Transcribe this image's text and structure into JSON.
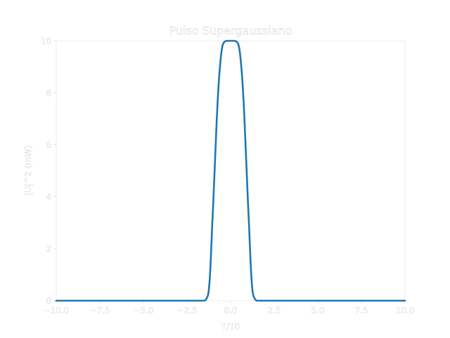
{
  "chart_data": {
    "type": "line",
    "title": "Pulso Supergaussiano",
    "xlabel": "T/T0",
    "ylabel": "|U|^2 (mW)",
    "xlim": [
      -10.0,
      10.0
    ],
    "ylim": [
      0,
      10
    ],
    "xticks": [
      "−10.0",
      "−7.5",
      "−5.0",
      "−2.5",
      "0.0",
      "2.5",
      "5.0",
      "7.5",
      "10.0"
    ],
    "xtick_values": [
      -10.0,
      -7.5,
      -5.0,
      -2.5,
      0.0,
      2.5,
      5.0,
      7.5,
      10.0
    ],
    "yticks": [
      "0",
      "2",
      "4",
      "6",
      "8",
      "10"
    ],
    "ytick_values": [
      0,
      2,
      4,
      6,
      8,
      10
    ],
    "grid": false,
    "series": [
      {
        "color": "#1f77b4",
        "x": [
          -10.0,
          -2.0,
          -1.5,
          -1.4,
          -1.3,
          -1.25,
          -1.2,
          -1.15,
          -1.1,
          -1.05,
          -1.0,
          -0.95,
          -0.9,
          -0.85,
          -0.8,
          -0.75,
          -0.7,
          -0.65,
          -0.6,
          -0.55,
          -0.5,
          -0.45,
          -0.4,
          -0.3,
          -0.2,
          -0.1,
          0.0,
          0.1,
          0.2,
          0.3,
          0.4,
          0.45,
          0.5,
          0.55,
          0.6,
          0.65,
          0.7,
          0.75,
          0.8,
          0.85,
          0.9,
          0.95,
          1.0,
          1.05,
          1.1,
          1.15,
          1.2,
          1.25,
          1.3,
          1.4,
          1.5,
          2.0,
          10.0
        ],
        "y": [
          0.0,
          0.0,
          0.0,
          0.05,
          0.2,
          0.4,
          0.8,
          1.4,
          2.2,
          3.0,
          3.7,
          4.5,
          5.3,
          6.1,
          6.9,
          7.6,
          8.2,
          8.7,
          9.1,
          9.45,
          9.7,
          9.85,
          9.93,
          9.99,
          10.0,
          10.0,
          10.0,
          10.0,
          10.0,
          9.99,
          9.93,
          9.85,
          9.7,
          9.45,
          9.1,
          8.7,
          8.2,
          7.6,
          6.9,
          6.1,
          5.3,
          4.5,
          3.7,
          3.0,
          2.2,
          1.4,
          0.8,
          0.4,
          0.2,
          0.05,
          0.0,
          0.0,
          0.0
        ]
      }
    ]
  }
}
